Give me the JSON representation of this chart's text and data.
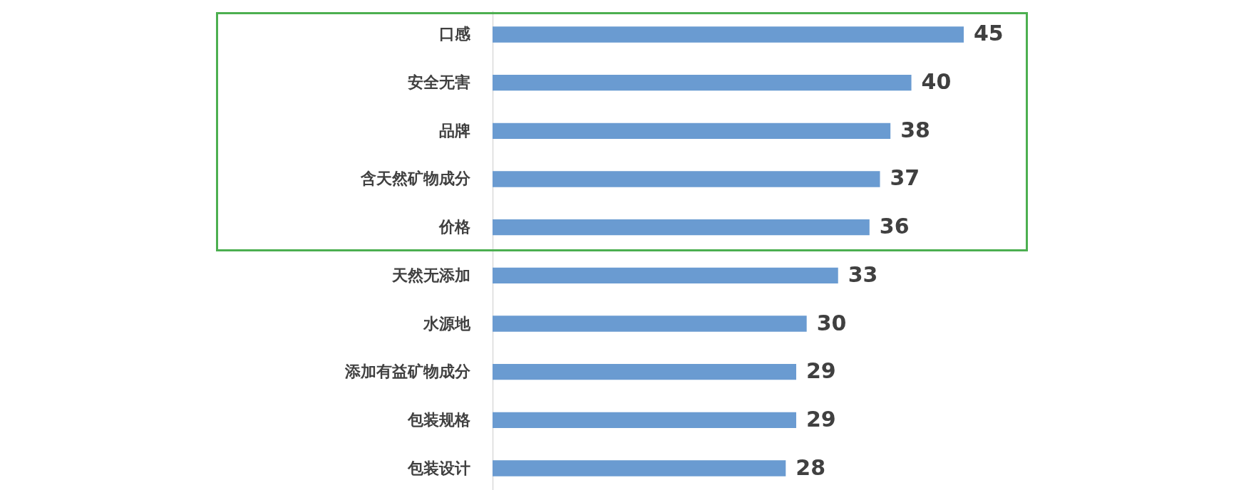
{
  "chart_data": {
    "type": "bar",
    "orientation": "horizontal",
    "categories": [
      "口感",
      "安全无害",
      "品牌",
      "含天然矿物成分",
      "价格",
      "天然无添加",
      "水源地",
      "添加有益矿物成分",
      "包装规格",
      "包装设计"
    ],
    "values": [
      45,
      40,
      38,
      37,
      36,
      33,
      30,
      29,
      29,
      28
    ],
    "color": "#6a9bd1",
    "data_labels": true
  }
}
